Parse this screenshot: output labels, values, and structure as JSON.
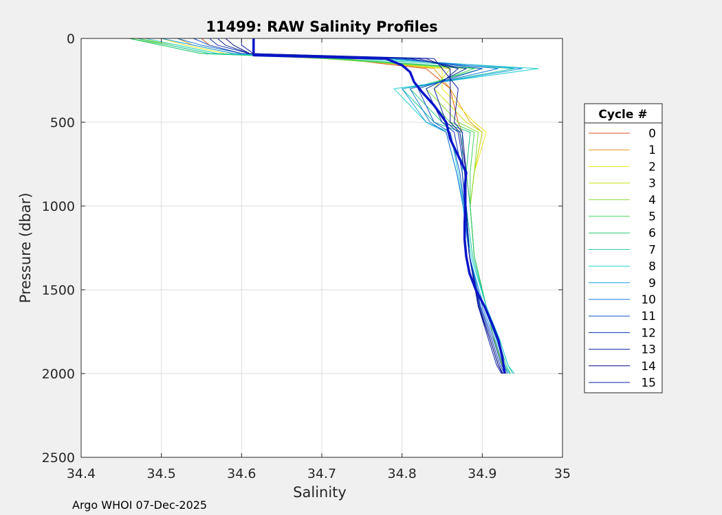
{
  "chart_data": {
    "type": "line",
    "title": "11499: RAW Salinity Profiles",
    "xlabel": "Salinity",
    "ylabel": "Pressure (dbar)",
    "xlim": [
      34.4,
      35.0
    ],
    "ylim": [
      0,
      2500
    ],
    "y_reversed": true,
    "grid": true,
    "xticks": [
      "34.4",
      "34.5",
      "34.6",
      "34.7",
      "34.8",
      "34.9",
      "35"
    ],
    "yticks": [
      "0",
      "500",
      "1000",
      "1500",
      "2000",
      "2500"
    ],
    "legend": {
      "title": "Cycle #",
      "position": "right"
    },
    "mean_pressure": [
      0,
      100,
      120,
      140,
      160,
      200,
      260,
      320,
      400,
      500,
      600,
      700,
      800,
      900,
      1000,
      1100,
      1200,
      1300,
      1400,
      1500,
      1600,
      1700,
      1800,
      1900,
      2000
    ],
    "mean_salinity": [
      34.615,
      34.615,
      34.78,
      34.79,
      34.8,
      34.81,
      34.815,
      34.825,
      34.84,
      34.855,
      34.86,
      34.87,
      34.88,
      34.878,
      34.879,
      34.878,
      34.878,
      34.88,
      34.884,
      34.892,
      34.903,
      34.912,
      34.92,
      34.925,
      34.928
    ],
    "series": [
      {
        "name": "0",
        "color": "#d95319",
        "values": [
          34.55,
          34.56,
          34.6,
          34.72,
          34.83,
          34.86,
          34.87,
          34.875,
          34.88,
          34.885,
          34.89,
          34.905,
          34.915,
          34.925,
          34.93
        ]
      },
      {
        "name": "1",
        "color": "#e69a12",
        "values": [
          34.52,
          34.54,
          34.59,
          34.73,
          34.84,
          34.86,
          34.885,
          34.9,
          34.89,
          34.885,
          34.89,
          34.905,
          34.915,
          34.925,
          34.93
        ]
      },
      {
        "name": "2",
        "color": "#f1e319",
        "values": [
          34.5,
          34.53,
          34.58,
          34.72,
          34.85,
          34.85,
          34.89,
          34.905,
          34.89,
          34.885,
          34.89,
          34.905,
          34.915,
          34.925,
          34.93
        ]
      },
      {
        "name": "3",
        "color": "#c8e01a",
        "values": [
          34.47,
          34.52,
          34.57,
          34.71,
          34.86,
          34.84,
          34.88,
          34.9,
          34.89,
          34.885,
          34.89,
          34.905,
          34.915,
          34.925,
          34.93
        ]
      },
      {
        "name": "4",
        "color": "#86dc3a",
        "values": [
          34.46,
          34.51,
          34.56,
          34.7,
          34.88,
          34.83,
          34.87,
          34.895,
          34.89,
          34.885,
          34.89,
          34.905,
          34.915,
          34.925,
          34.93
        ]
      },
      {
        "name": "5",
        "color": "#45d05a",
        "values": [
          34.46,
          34.5,
          34.55,
          34.71,
          34.89,
          34.82,
          34.86,
          34.89,
          34.885,
          34.885,
          34.89,
          34.905,
          34.918,
          34.928,
          34.932
        ]
      },
      {
        "name": "6",
        "color": "#26c878",
        "values": [
          34.46,
          34.5,
          34.55,
          34.72,
          34.9,
          34.81,
          34.85,
          34.885,
          34.88,
          34.885,
          34.89,
          34.905,
          34.92,
          34.93,
          34.935
        ]
      },
      {
        "name": "7",
        "color": "#1ac5a7",
        "values": [
          34.47,
          34.51,
          34.56,
          34.74,
          34.94,
          34.8,
          34.84,
          34.875,
          34.875,
          34.88,
          34.888,
          34.905,
          34.922,
          34.932,
          34.938
        ]
      },
      {
        "name": "8",
        "color": "#22d0d0",
        "values": [
          34.48,
          34.52,
          34.57,
          34.76,
          34.97,
          34.79,
          34.83,
          34.86,
          34.87,
          34.878,
          34.886,
          34.905,
          34.922,
          34.932,
          34.94
        ]
      },
      {
        "name": "9",
        "color": "#1c9ee0",
        "values": [
          34.5,
          34.54,
          34.59,
          34.78,
          34.95,
          34.8,
          34.83,
          34.855,
          34.868,
          34.876,
          34.884,
          34.902,
          34.918,
          34.928,
          34.934
        ]
      },
      {
        "name": "10",
        "color": "#1677d8",
        "values": [
          34.52,
          34.55,
          34.6,
          34.79,
          34.92,
          34.81,
          34.835,
          34.855,
          34.868,
          34.877,
          34.884,
          34.9,
          34.916,
          34.926,
          34.932
        ]
      },
      {
        "name": "11",
        "color": "#1252c8",
        "values": [
          34.54,
          34.56,
          34.6,
          34.8,
          34.9,
          34.82,
          34.84,
          34.86,
          34.872,
          34.878,
          34.884,
          34.898,
          34.914,
          34.924,
          34.93
        ]
      },
      {
        "name": "12",
        "color": "#0c2fb0",
        "values": [
          34.56,
          34.57,
          34.61,
          34.81,
          34.88,
          34.83,
          34.85,
          34.865,
          34.875,
          34.879,
          34.884,
          34.897,
          34.912,
          34.922,
          34.928
        ]
      },
      {
        "name": "13",
        "color": "#07229a",
        "values": [
          34.57,
          34.58,
          34.61,
          34.82,
          34.87,
          34.84,
          34.855,
          34.87,
          34.878,
          34.88,
          34.884,
          34.896,
          34.91,
          34.92,
          34.926
        ]
      },
      {
        "name": "14",
        "color": "#040f7e",
        "values": [
          34.58,
          34.59,
          34.61,
          34.83,
          34.86,
          34.86,
          34.86,
          34.872,
          34.88,
          34.88,
          34.884,
          34.895,
          34.91,
          34.92,
          34.925
        ]
      },
      {
        "name": "15",
        "color": "#0b1ba8",
        "values": [
          34.6,
          34.6,
          34.615,
          34.84,
          34.85,
          34.87,
          34.865,
          34.875,
          34.88,
          34.88,
          34.884,
          34.895,
          34.908,
          34.918,
          34.924
        ]
      }
    ],
    "pressure": [
      0,
      40,
      90,
      120,
      180,
      300,
      500,
      560,
      800,
      1000,
      1300,
      1600,
      1800,
      1950,
      2000
    ]
  },
  "footer": {
    "text": "Argo WHOI 07-Dec-2025"
  },
  "colors": {
    "mean_line": "#0a14c8",
    "grid": "#dcdcdc",
    "axes_bg": "#ffffff",
    "figure_bg": "#f0f0f0"
  }
}
